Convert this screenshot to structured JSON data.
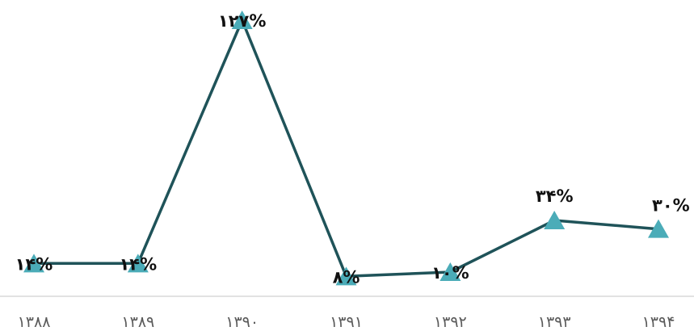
{
  "chart_data": {
    "type": "line",
    "categories": [
      "۱۳۸۸",
      "۱۳۸۹",
      "۱۳۹۰",
      "۱۳۹۱",
      "۱۳۹۲",
      "۱۳۹۳",
      "۱۳۹۴"
    ],
    "values": [
      14,
      14,
      127,
      8,
      10,
      34,
      30
    ],
    "data_labels": [
      "۱۴%",
      "۱۴%",
      "۱۲۷%",
      "۸%",
      "۱۰%",
      "۳۴%",
      "۳۰%"
    ],
    "ylim": [
      7,
      127
    ],
    "grid": false,
    "legend": "none",
    "line_color": "#1f5359",
    "marker": "triangle",
    "marker_color": "#4bacb8",
    "axis_color": "#d9d9d9",
    "title": "",
    "xlabel": "",
    "ylabel": ""
  }
}
